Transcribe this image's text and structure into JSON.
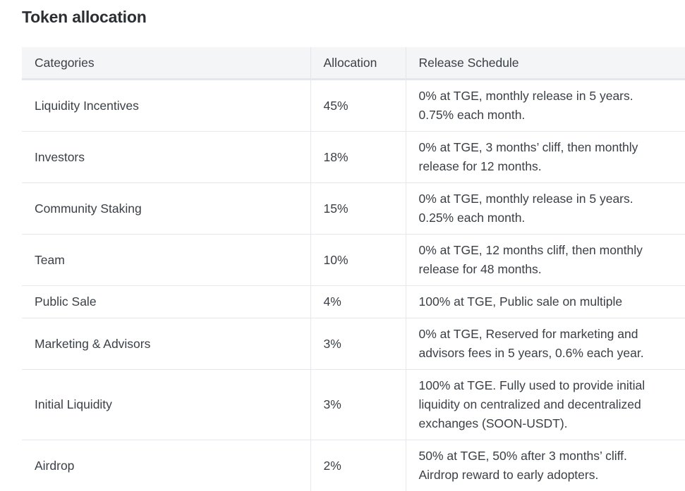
{
  "title": "Token allocation",
  "table": {
    "headers": [
      "Categories",
      "Allocation",
      "Release Schedule"
    ],
    "rows": [
      {
        "category": "Liquidity Incentives",
        "allocation": "45%",
        "schedule": [
          "0% at TGE, monthly release in 5 years.",
          "0.75% each month."
        ]
      },
      {
        "category": "Investors",
        "allocation": "18%",
        "schedule": [
          "0% at TGE, 3 months’ cliff, then monthly",
          "release for 12 months."
        ]
      },
      {
        "category": "Community Staking",
        "allocation": "15%",
        "schedule": [
          "0% at TGE, monthly release in 5 years.",
          "0.25% each month."
        ]
      },
      {
        "category": "Team",
        "allocation": "10%",
        "schedule": [
          "0% at TGE, 12 months cliff, then monthly",
          "release for 48 months."
        ]
      },
      {
        "category": "Public Sale",
        "allocation": "4%",
        "schedule": [
          "100% at TGE, Public sale on multiple"
        ]
      },
      {
        "category": "Marketing & Advisors",
        "allocation": "3%",
        "schedule": [
          "0% at TGE, Reserved for marketing and",
          "advisors fees in 5 years, 0.6% each year."
        ]
      },
      {
        "category": "Initial Liquidity",
        "allocation": "3%",
        "schedule": [
          "100% at TGE. Fully used to provide initial",
          "liquidity on centralized and decentralized",
          "exchanges (SOON-USDT)."
        ]
      },
      {
        "category": "Airdrop",
        "allocation": "2%",
        "schedule": [
          "50% at TGE, 50% after 3 months’ cliff.",
          "Airdrop reward to early adopters."
        ]
      }
    ]
  }
}
